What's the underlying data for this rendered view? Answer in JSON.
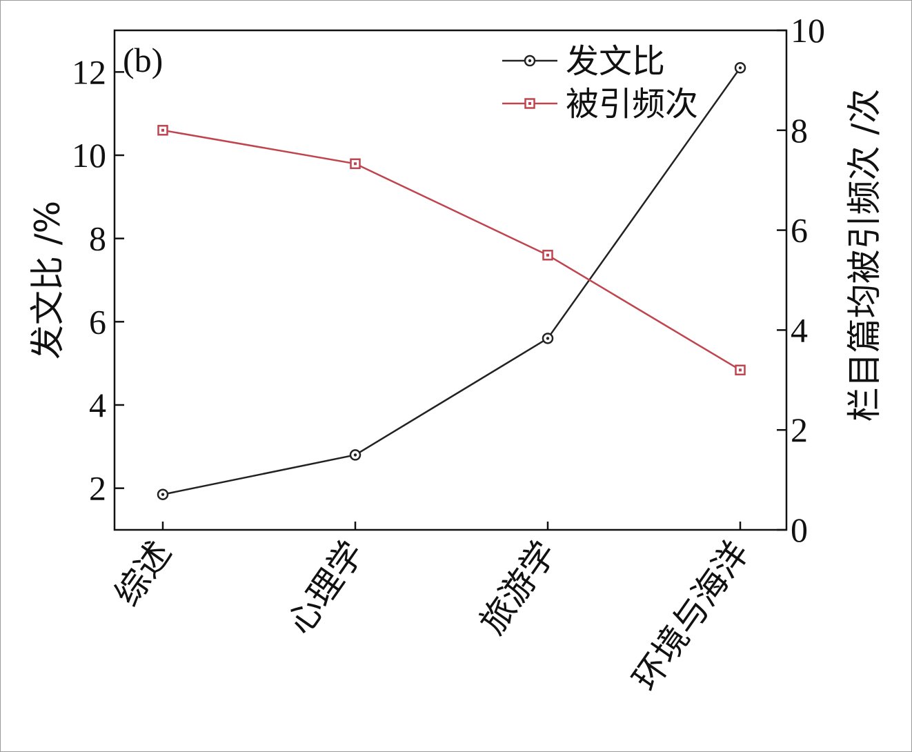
{
  "chart_data": {
    "type": "line",
    "panel_label": "(b)",
    "categories": [
      "综述",
      "心理学",
      "旅游学",
      "环境与海洋"
    ],
    "y_left": {
      "label": "发文比 /%",
      "min": 1,
      "max": 13,
      "ticks": [
        2,
        4,
        6,
        8,
        10,
        12
      ]
    },
    "y_right": {
      "label": "栏目篇均被引频次 /次",
      "min": 0,
      "max": 10,
      "ticks": [
        0,
        2,
        4,
        6,
        8,
        10
      ]
    },
    "series": [
      {
        "name": "发文比",
        "axis": "left",
        "color": "#222222",
        "marker": "circle",
        "values": [
          1.85,
          2.8,
          5.6,
          12.1
        ]
      },
      {
        "name": "被引频次",
        "axis": "right",
        "color": "#c0444e",
        "marker": "square",
        "values": [
          8.0,
          7.33,
          5.5,
          3.2
        ]
      }
    ],
    "legend_position": "top-right",
    "grid": false
  }
}
